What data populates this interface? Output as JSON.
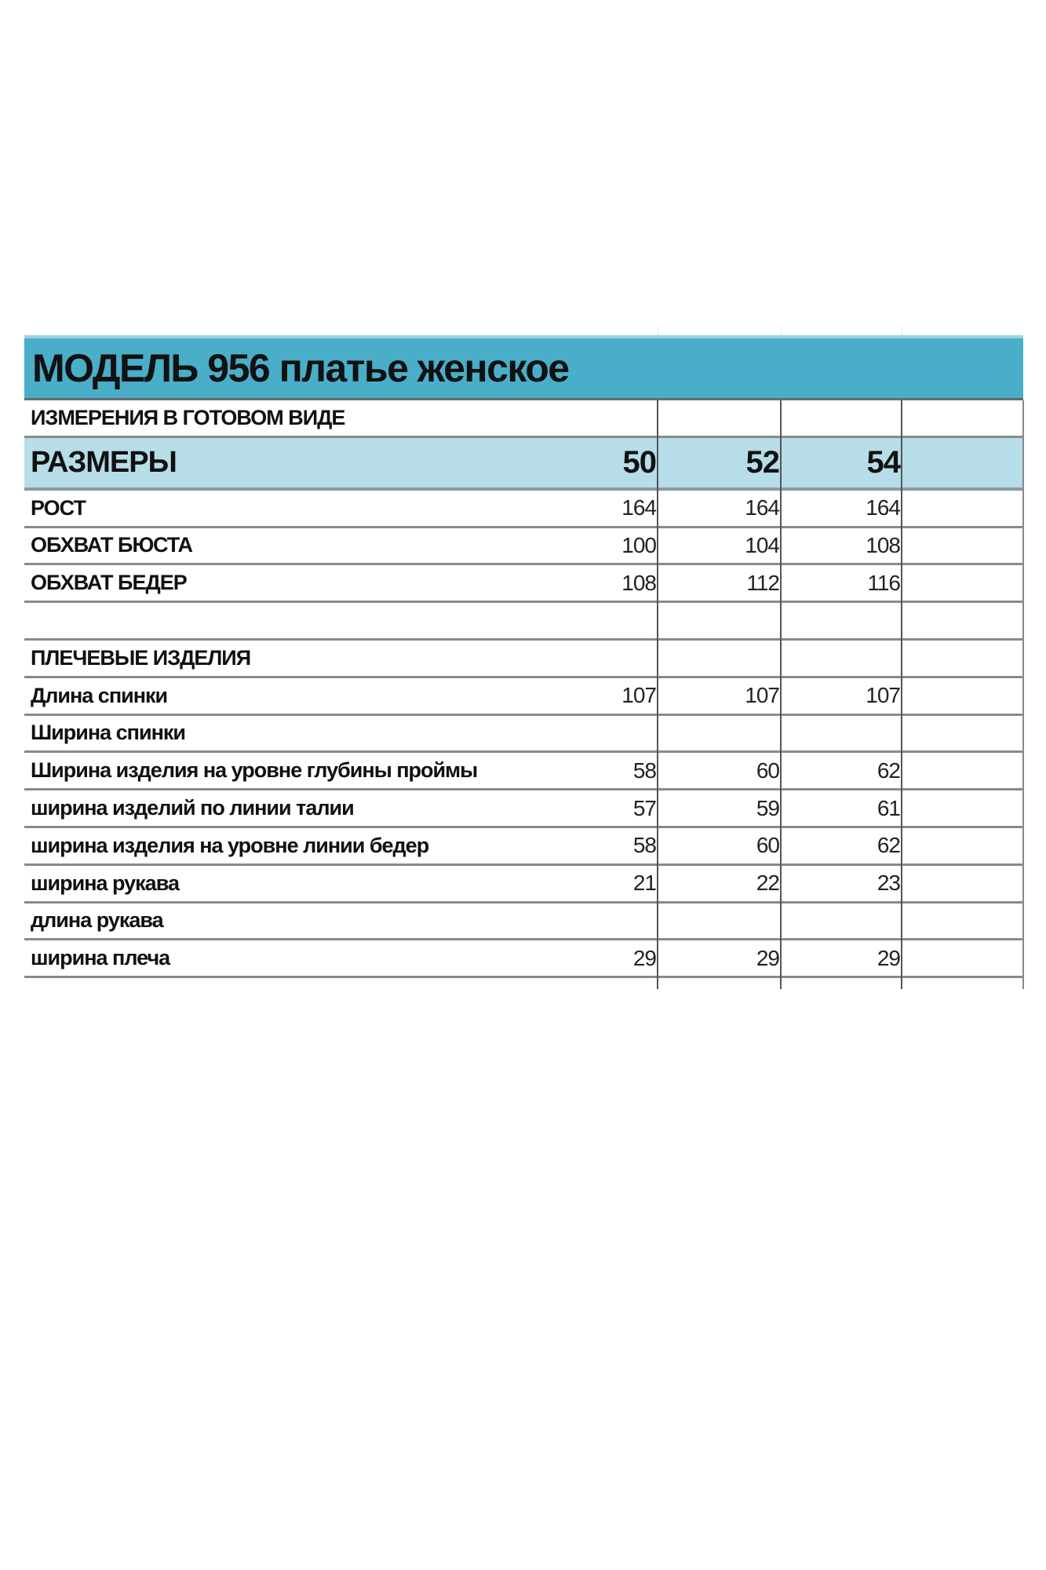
{
  "title": "МОДЕЛЬ 956 платье женское",
  "subtitle": "ИЗМЕРЕНИЯ В ГОТОВОМ ВИДЕ",
  "sizes_label": "РАЗМЕРЫ",
  "sizes": [
    "50",
    "52",
    "54"
  ],
  "colors": {
    "title_bg": "#4aaec8",
    "sizes_bg": "#b6dde8"
  },
  "rows": [
    {
      "label": "РОСТ",
      "values": [
        "164",
        "164",
        "164"
      ]
    },
    {
      "label": "ОБХВАТ БЮСТА",
      "values": [
        "100",
        "104",
        "108"
      ]
    },
    {
      "label": "ОБХВАТ БЕДЕР",
      "values": [
        "108",
        "112",
        "116"
      ]
    },
    {
      "label": "",
      "values": [
        "",
        "",
        ""
      ]
    },
    {
      "label": "ПЛЕЧЕВЫЕ ИЗДЕЛИЯ",
      "values": [
        "",
        "",
        ""
      ]
    },
    {
      "label": "Длина спинки",
      "values": [
        "107",
        "107",
        "107"
      ]
    },
    {
      "label": "Ширина спинки",
      "values": [
        "",
        "",
        ""
      ]
    },
    {
      "label": "Ширина изделия на уровне глубины проймы",
      "values": [
        "58",
        "60",
        "62"
      ]
    },
    {
      "label": "ширина изделий по линии талии",
      "values": [
        "57",
        "59",
        "61"
      ]
    },
    {
      "label": "ширина изделия на уровне линии бедер",
      "values": [
        "58",
        "60",
        "62"
      ]
    },
    {
      "label": "ширина рукава",
      "values": [
        "21",
        "22",
        "23"
      ]
    },
    {
      "label": "длина рукава",
      "values": [
        "",
        "",
        ""
      ]
    },
    {
      "label": "ширина плеча",
      "values": [
        "29",
        "29",
        "29"
      ]
    }
  ]
}
